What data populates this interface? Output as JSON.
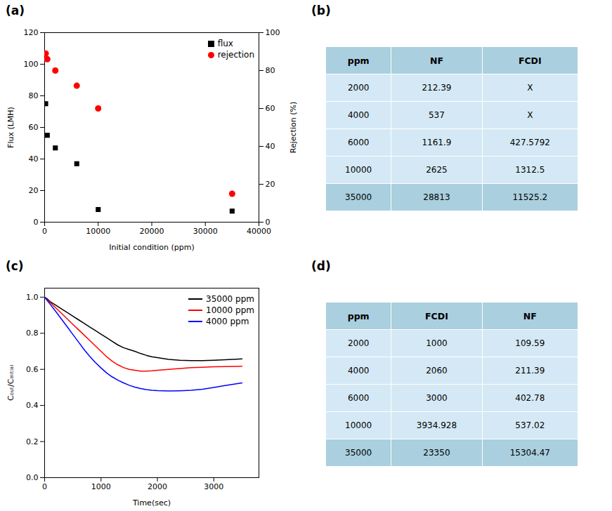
{
  "chart_data": [
    {
      "type": "scatter",
      "title": "(a)",
      "xlabel": "Initial condition (ppm)",
      "ylabel": "Flux (LMH)",
      "y2label": "Rejection (%)",
      "x": [
        200,
        500,
        2000,
        6000,
        10000,
        35000
      ],
      "series": [
        {
          "name": "flux",
          "color": "#000000",
          "marker": "square",
          "values": [
            75,
            55,
            47,
            37,
            8,
            7
          ]
        },
        {
          "name": "rejection",
          "color": "#FF0000",
          "marker": "circle",
          "axis": "y2",
          "values": [
            89,
            86,
            80,
            72,
            60,
            15
          ]
        }
      ],
      "xlim": [
        0,
        40000
      ],
      "xticks": [
        0,
        10000,
        20000,
        30000,
        40000
      ],
      "ylim": [
        0,
        120
      ],
      "yticks": [
        0,
        20,
        40,
        60,
        80,
        100,
        120
      ],
      "y2lim": [
        0,
        100
      ],
      "y2ticks": [
        0,
        20,
        40,
        60,
        80,
        100
      ],
      "legend": "upper right"
    },
    {
      "type": "table",
      "title": "(b)",
      "categories": [
        "ppm",
        "NF",
        "FCDI"
      ],
      "rows": [
        [
          "2000",
          "212.39",
          "X"
        ],
        [
          "4000",
          "537",
          "X"
        ],
        [
          "6000",
          "1161.9",
          "427.5792"
        ],
        [
          "10000",
          "2625",
          "1312.5"
        ],
        [
          "35000",
          "28813",
          "11525.2"
        ]
      ],
      "colors": [
        "#aacfdf",
        "#d4e9f5",
        "#d4e9f5",
        "#d4e9f5",
        "#d4e9f5",
        "#aacfdf"
      ]
    },
    {
      "type": "line",
      "title": "(c)",
      "xlabel": "Time(sec)",
      "ylabel": "Cₒᵤₜ/Cᵢₙᵢₜᵢₐₗ",
      "x": [
        0,
        50,
        100,
        150,
        200,
        300,
        400,
        500,
        600,
        700,
        800,
        900,
        1000,
        1100,
        1200,
        1300,
        1400,
        1500,
        1600,
        1700,
        1800,
        1900,
        2000,
        2200,
        2400,
        2600,
        2800,
        3000,
        3200,
        3400,
        3500
      ],
      "series": [
        {
          "name": "35000 ppm",
          "color": "#000000",
          "values": [
            1.0,
            0.99,
            0.975,
            0.965,
            0.955,
            0.935,
            0.915,
            0.895,
            0.875,
            0.855,
            0.835,
            0.815,
            0.795,
            0.775,
            0.755,
            0.735,
            0.72,
            0.71,
            0.7,
            0.688,
            0.678,
            0.67,
            0.665,
            0.655,
            0.65,
            0.648,
            0.648,
            0.65,
            0.653,
            0.656,
            0.658
          ]
        },
        {
          "name": "10000 ppm",
          "color": "#FF0000",
          "values": [
            1.0,
            0.985,
            0.97,
            0.955,
            0.94,
            0.91,
            0.88,
            0.85,
            0.82,
            0.79,
            0.76,
            0.73,
            0.7,
            0.67,
            0.645,
            0.625,
            0.61,
            0.6,
            0.595,
            0.59,
            0.59,
            0.592,
            0.595,
            0.6,
            0.605,
            0.61,
            0.612,
            0.614,
            0.615,
            0.616,
            0.617
          ]
        },
        {
          "name": "4000 ppm",
          "color": "#0000FF",
          "values": [
            1.0,
            0.98,
            0.96,
            0.94,
            0.92,
            0.878,
            0.836,
            0.794,
            0.752,
            0.71,
            0.672,
            0.638,
            0.608,
            0.58,
            0.558,
            0.54,
            0.525,
            0.512,
            0.502,
            0.494,
            0.488,
            0.484,
            0.482,
            0.48,
            0.481,
            0.484,
            0.49,
            0.5,
            0.51,
            0.52,
            0.525
          ]
        }
      ],
      "xlim": [
        0,
        3800
      ],
      "xticks": [
        0,
        1000,
        2000,
        3000
      ],
      "ylim": [
        0.0,
        1.05
      ],
      "yticks": [
        {
          "value": 0.0,
          "label": "0.0"
        },
        0.2,
        0.4,
        0.6,
        0.8,
        {
          "value": 1.0,
          "label": "1.0"
        }
      ],
      "legend": "upper right"
    },
    {
      "type": "table",
      "title": "(d)",
      "categories": [
        "ppm",
        "FCDI",
        "NF"
      ],
      "rows": [
        [
          "2000",
          "1000",
          "109.59"
        ],
        [
          "4000",
          "2060",
          "211.39"
        ],
        [
          "6000",
          "3000",
          "402.78"
        ],
        [
          "10000",
          "3934.928",
          "537.02"
        ],
        [
          "35000",
          "23350",
          "15304.47"
        ]
      ],
      "colors": [
        "#aacfdf",
        "#d4e9f5",
        "#d4e9f5",
        "#d4e9f5",
        "#d4e9f5",
        "#aacfdf"
      ]
    }
  ]
}
